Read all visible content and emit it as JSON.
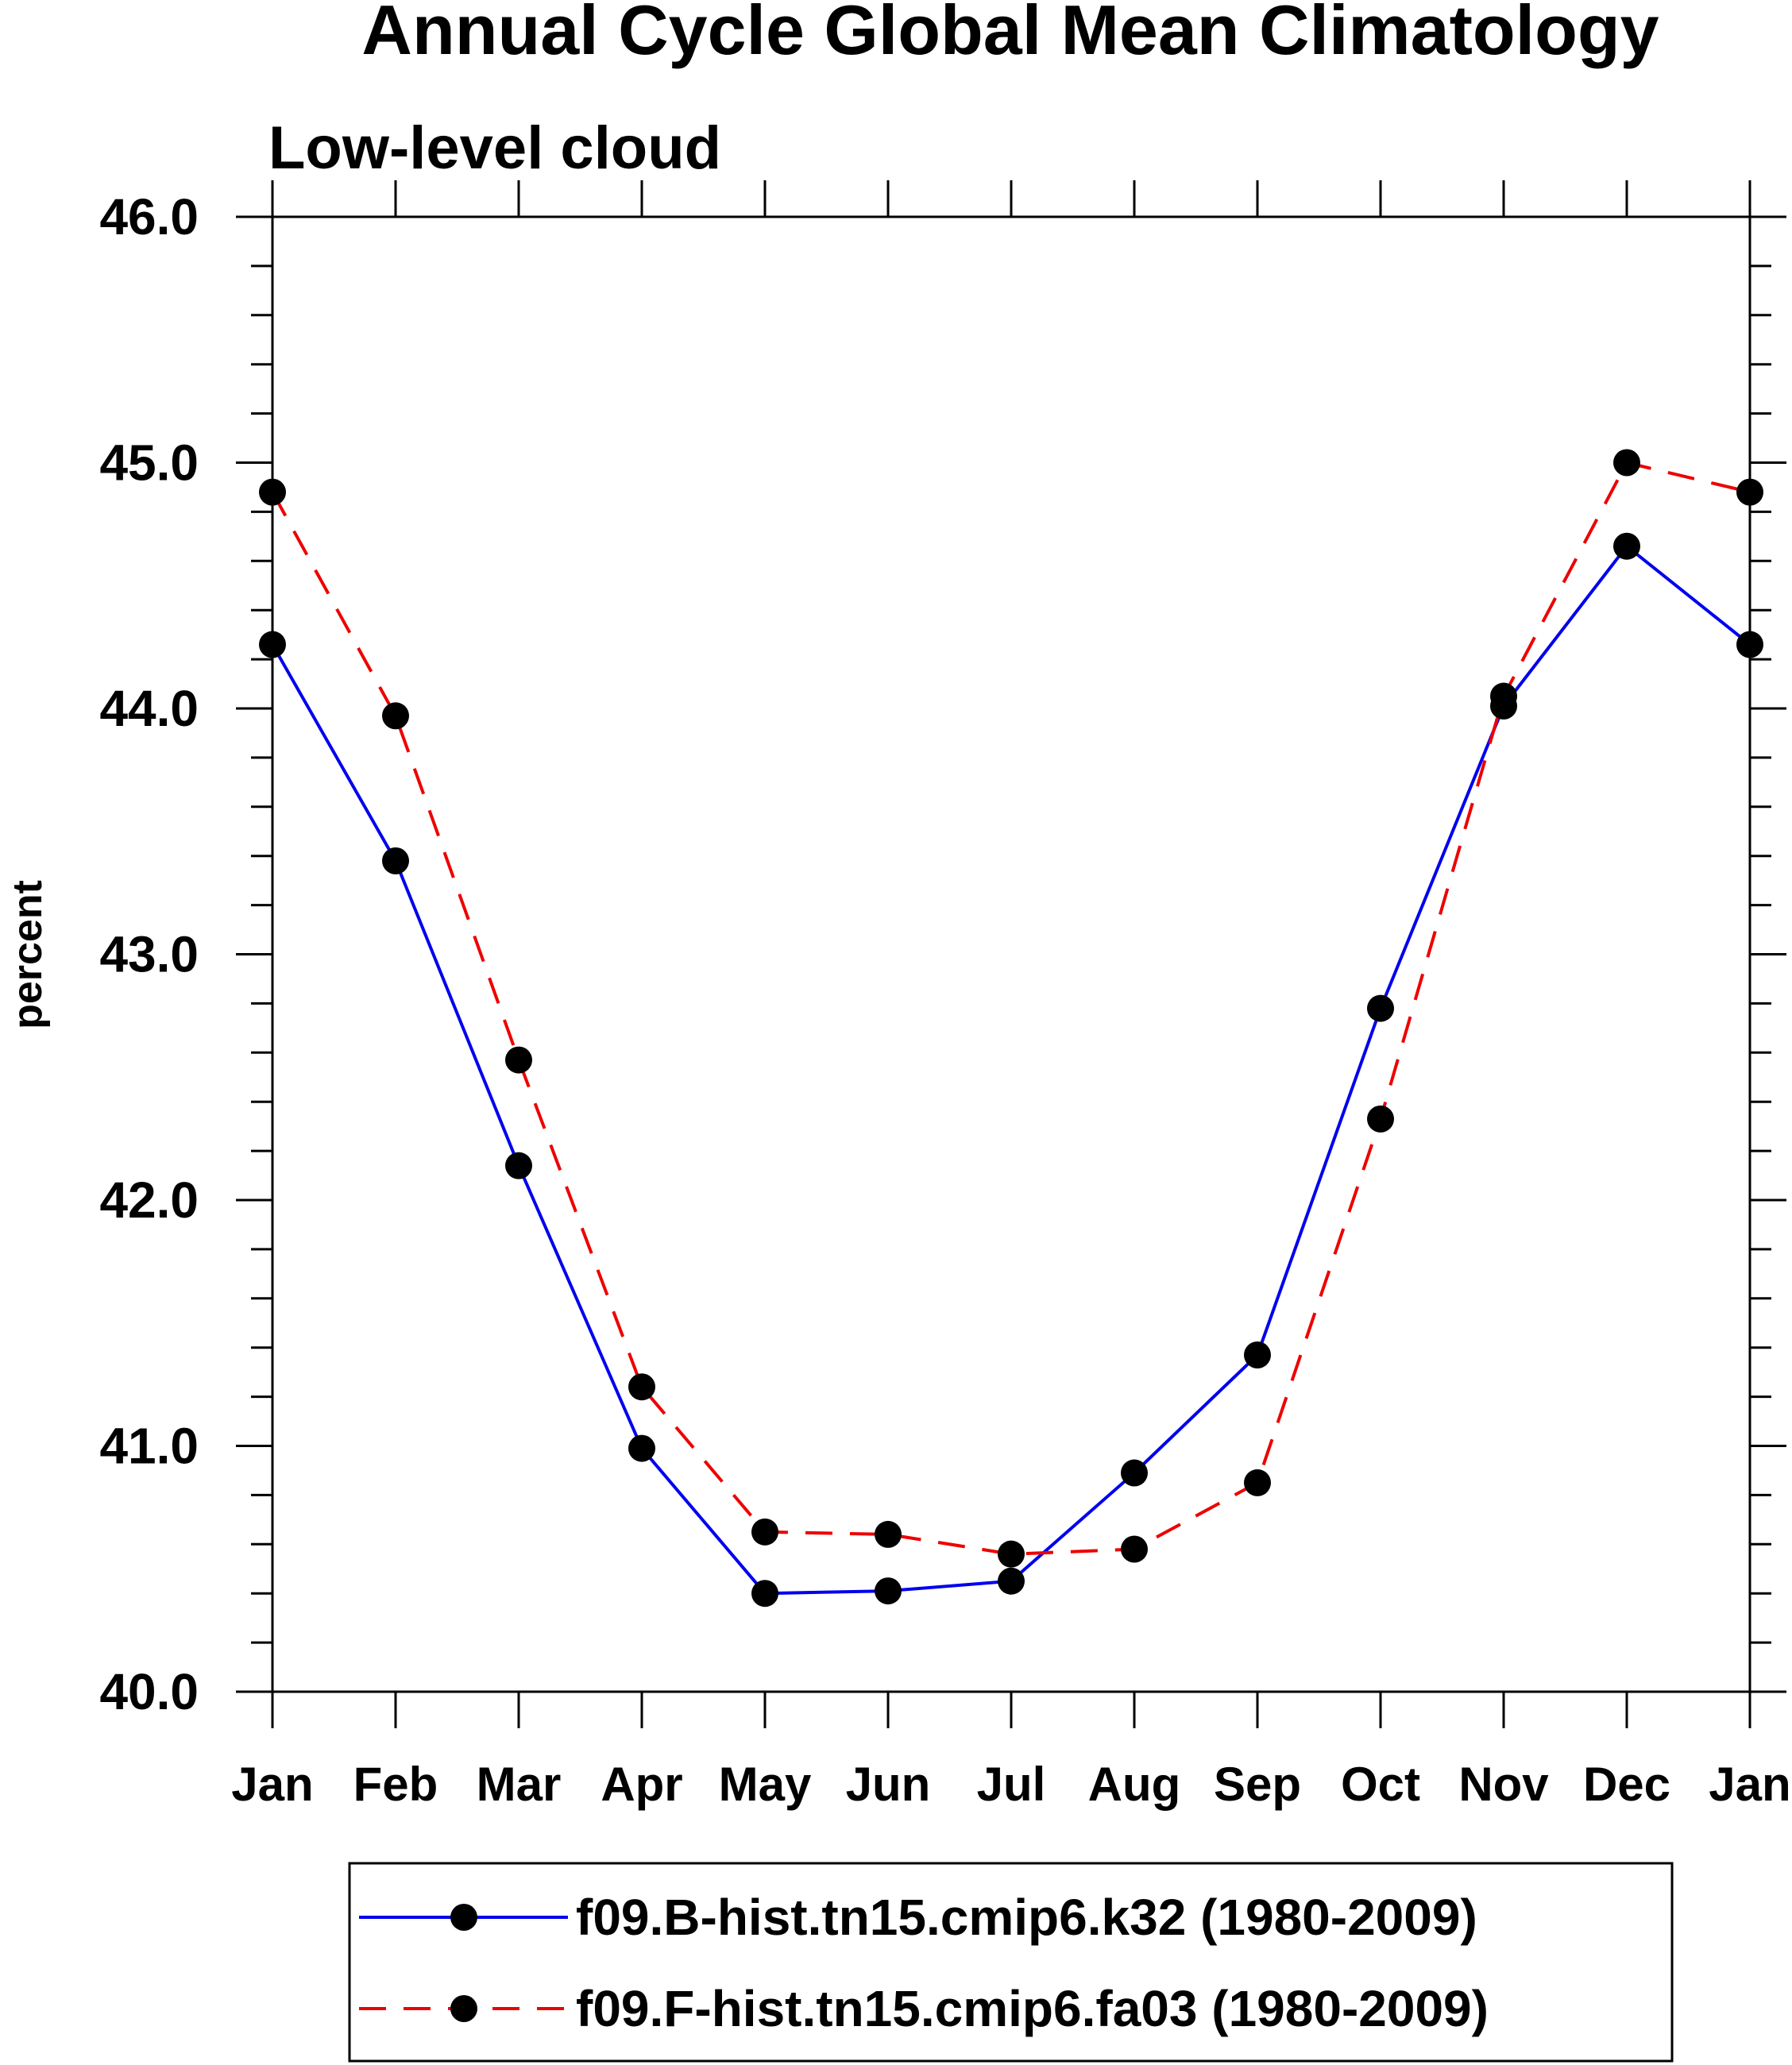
{
  "chart_data": {
    "type": "line",
    "title": "Annual Cycle Global Mean Climatology",
    "subtitle": "Low-level cloud",
    "xlabel": "",
    "ylabel": "percent",
    "categories": [
      "Jan",
      "Feb",
      "Mar",
      "Apr",
      "May",
      "Jun",
      "Jul",
      "Aug",
      "Sep",
      "Oct",
      "Nov",
      "Dec",
      "Jan"
    ],
    "ylim": [
      40.0,
      46.0
    ],
    "yticks": [
      "40.0",
      "41.0",
      "42.0",
      "43.0",
      "44.0",
      "45.0",
      "46.0"
    ],
    "grid": false,
    "legend_position": "bottom",
    "series": [
      {
        "name": "f09.B-hist.tn15.cmip6.k32 (1980-2009)",
        "color": "#0000ee",
        "dash": "solid",
        "marker": "filled-circle",
        "values": [
          44.26,
          43.38,
          42.14,
          40.99,
          40.4,
          40.41,
          40.45,
          40.89,
          41.37,
          42.78,
          44.01,
          44.66,
          44.26
        ]
      },
      {
        "name": "f09.F-hist.tn15.cmip6.fa03 (1980-2009)",
        "color": "#ee0000",
        "dash": "dashed",
        "marker": "filled-circle",
        "values": [
          44.88,
          43.97,
          42.57,
          41.24,
          40.65,
          40.64,
          40.56,
          40.58,
          40.85,
          42.33,
          44.05,
          45.0,
          44.88
        ]
      }
    ]
  }
}
